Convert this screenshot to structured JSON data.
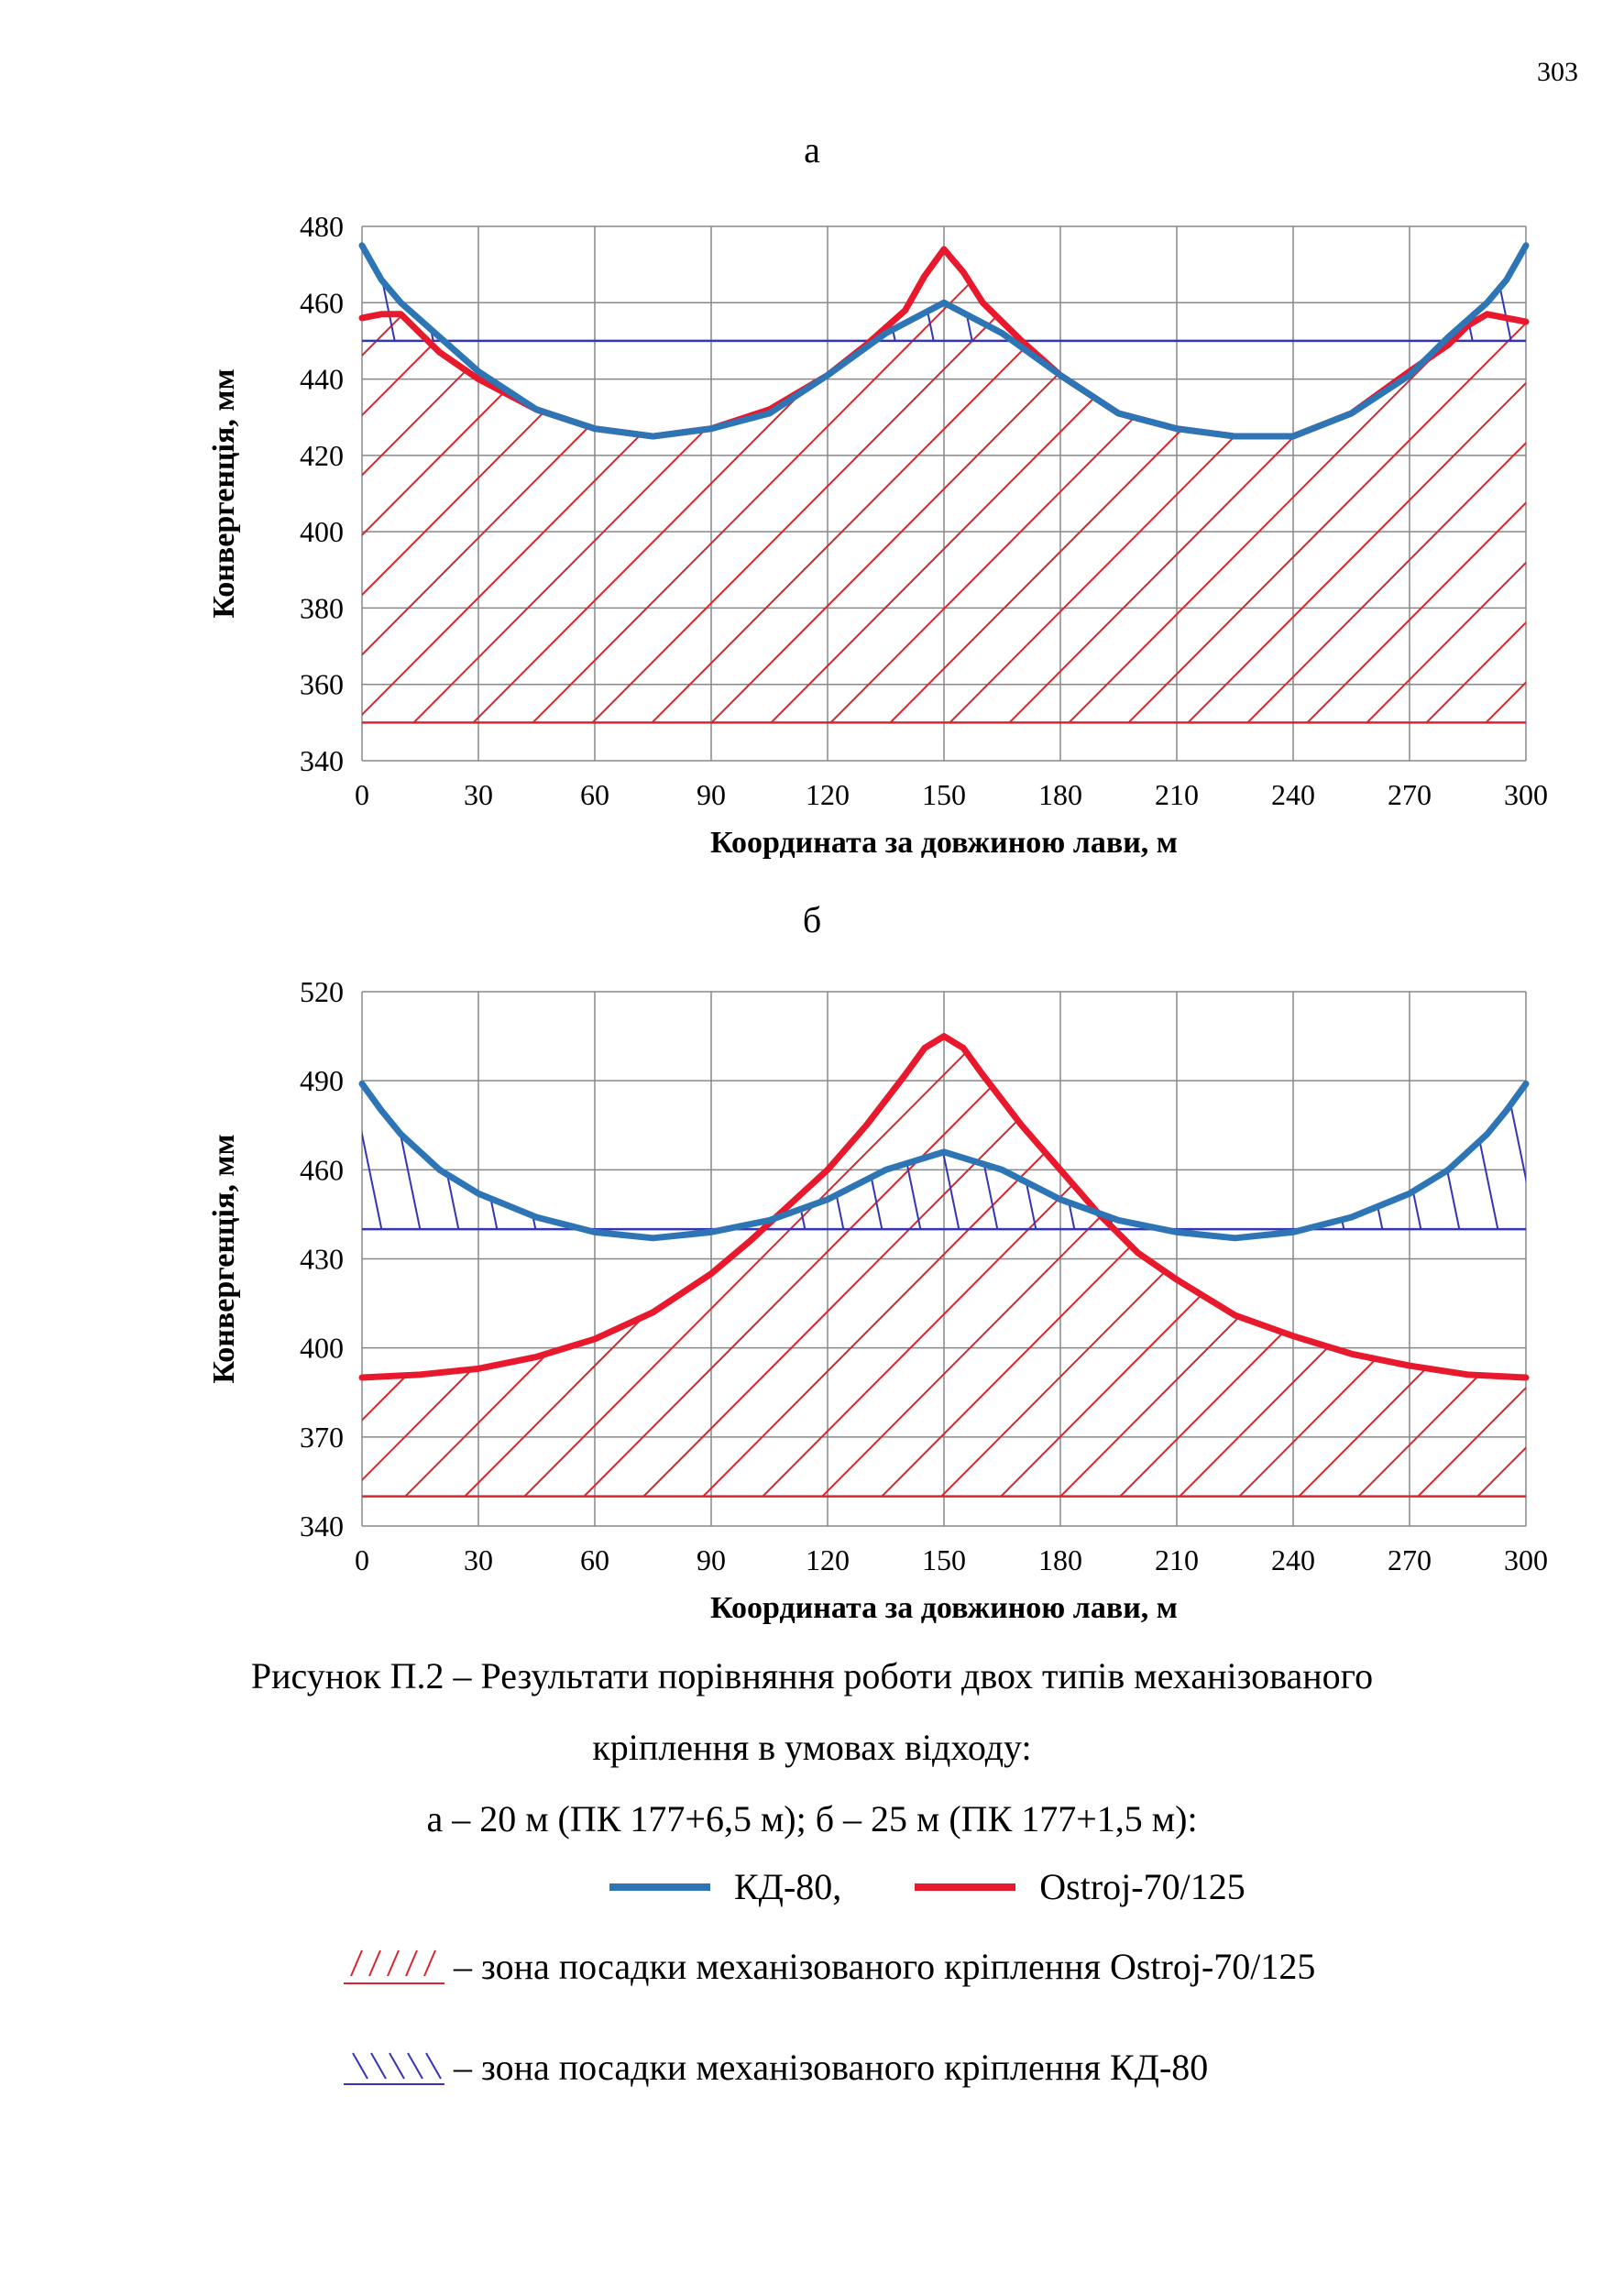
{
  "page_number": "303",
  "colors": {
    "kd80": "#2e75b6",
    "ostroj": "#e8192c",
    "kd80_zone": "#3535b5",
    "ostroj_zone": "#d4282e",
    "grid": "#888888"
  },
  "chart_data": [
    {
      "type": "line",
      "panel_label": "а",
      "xlabel": "Координата за довжиною лави, м",
      "ylabel": "Конвергенція, мм",
      "xlim": [
        0,
        300
      ],
      "ylim": [
        340,
        480
      ],
      "x_ticks": [
        0,
        30,
        60,
        90,
        120,
        150,
        180,
        210,
        240,
        270,
        300
      ],
      "y_ticks": [
        340,
        360,
        380,
        400,
        420,
        440,
        460,
        480
      ],
      "grid": true,
      "series": [
        {
          "name": "КД-80",
          "color": "#2e75b6",
          "x": [
            0,
            5,
            10,
            20,
            30,
            45,
            60,
            75,
            90,
            105,
            120,
            135,
            150,
            165,
            180,
            195,
            210,
            225,
            240,
            255,
            270,
            280,
            290,
            295,
            300
          ],
          "y": [
            475,
            466,
            460,
            451,
            442,
            432,
            427,
            425,
            427,
            431,
            441,
            452,
            460,
            452,
            441,
            431,
            427,
            425,
            425,
            431,
            441,
            451,
            460,
            466,
            475
          ]
        },
        {
          "name": "Ostroj-70/125",
          "color": "#e8192c",
          "x": [
            0,
            5,
            10,
            15,
            20,
            30,
            45,
            60,
            75,
            90,
            105,
            120,
            130,
            140,
            145,
            150,
            155,
            160,
            170,
            180,
            195,
            210,
            225,
            240,
            255,
            270,
            280,
            285,
            290,
            295,
            300
          ],
          "y": [
            456,
            457,
            457,
            452,
            447,
            440,
            432,
            427,
            425,
            427,
            432,
            441,
            449,
            458,
            467,
            474,
            468,
            460,
            450,
            441,
            431,
            427,
            425,
            425,
            431,
            442,
            449,
            454,
            457,
            456,
            455
          ]
        }
      ],
      "reference_lines": [
        {
          "y": 450,
          "color": "#3535b5"
        },
        {
          "y": 350,
          "color": "#d4282e"
        }
      ]
    },
    {
      "type": "line",
      "panel_label": "б",
      "xlabel": "Координата за довжиною лави, м",
      "ylabel": "Конвергенція, мм",
      "xlim": [
        0,
        300
      ],
      "ylim": [
        340,
        520
      ],
      "x_ticks": [
        0,
        30,
        60,
        90,
        120,
        150,
        180,
        210,
        240,
        270,
        300
      ],
      "y_ticks": [
        340,
        370,
        400,
        430,
        460,
        490,
        520
      ],
      "grid": true,
      "series": [
        {
          "name": "КД-80",
          "color": "#2e75b6",
          "x": [
            0,
            5,
            10,
            20,
            30,
            45,
            60,
            75,
            90,
            105,
            120,
            135,
            150,
            165,
            180,
            195,
            210,
            225,
            240,
            255,
            270,
            280,
            290,
            295,
            300
          ],
          "y": [
            489,
            480,
            472,
            460,
            452,
            444,
            439,
            437,
            439,
            443,
            450,
            460,
            466,
            460,
            450,
            443,
            439,
            437,
            439,
            444,
            452,
            460,
            472,
            480,
            489
          ]
        },
        {
          "name": "Ostroj-70/125",
          "color": "#e8192c",
          "x": [
            0,
            15,
            30,
            45,
            60,
            75,
            90,
            100,
            110,
            120,
            130,
            140,
            145,
            150,
            155,
            160,
            170,
            180,
            190,
            200,
            210,
            225,
            240,
            255,
            270,
            285,
            300
          ],
          "y": [
            390,
            391,
            393,
            397,
            403,
            412,
            425,
            436,
            448,
            460,
            475,
            492,
            501,
            505,
            501,
            492,
            475,
            460,
            445,
            432,
            423,
            411,
            404,
            398,
            394,
            391,
            390
          ]
        }
      ],
      "reference_lines": [
        {
          "y": 440,
          "color": "#3535b5"
        },
        {
          "y": 350,
          "color": "#d4282e"
        }
      ]
    }
  ],
  "caption": {
    "line1": "Рисунок П.2 – Результати порівняння роботи двох типів механізованого",
    "line2": "кріплення в умовах відходу:",
    "line3": "а – 20 м (ПК 177+6,5 м); б – 25 м (ПК 177+1,5 м):"
  },
  "legend": {
    "kd80": "КД-80,",
    "ostroj": "Ostroj-70/125",
    "ostroj_zone": "– зона посадки механізованого кріплення Ostroj-70/125",
    "kd80_zone": "– зона посадки механізованого кріплення КД-80"
  }
}
